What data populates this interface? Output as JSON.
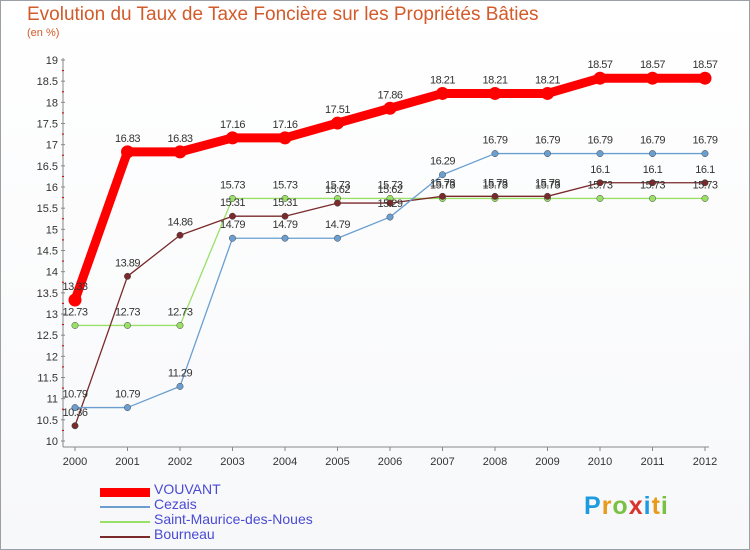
{
  "chart_data": {
    "type": "line",
    "title": "Evolution du Taux de Taxe Foncière sur les Propriétés Bâties",
    "subtitle": "(en %)",
    "x": [
      "2000",
      "2001",
      "2002",
      "2003",
      "2004",
      "2005",
      "2006",
      "2007",
      "2008",
      "2009",
      "2010",
      "2011",
      "2012"
    ],
    "ylim": [
      10,
      19
    ],
    "yticks": [
      "10",
      "10.5",
      "11",
      "11.5",
      "12",
      "12.5",
      "13",
      "13.5",
      "14",
      "14.5",
      "15",
      "15.5",
      "16",
      "16.5",
      "17",
      "17.5",
      "18",
      "18.5",
      "19"
    ],
    "grid": false,
    "series": [
      {
        "name": "VOUVANT",
        "color": "#ff0000",
        "emphasis": true,
        "values": [
          13.33,
          16.83,
          16.83,
          17.16,
          17.16,
          17.51,
          17.86,
          18.21,
          18.21,
          18.21,
          18.57,
          18.57,
          18.57
        ],
        "labels": [
          "13.33",
          "16.83",
          "16.83",
          "17.16",
          "17.16",
          "17.51",
          "17.86",
          "18.21",
          "18.21",
          "18.21",
          "18.57",
          "18.57",
          "18.57"
        ]
      },
      {
        "name": "Cezais",
        "color": "#6a9fd0",
        "values": [
          10.79,
          10.79,
          11.29,
          14.79,
          14.79,
          14.79,
          15.29,
          16.29,
          16.79,
          16.79,
          16.79,
          16.79,
          16.79
        ],
        "labels": [
          "10.79",
          "10.79",
          "11.29",
          "14.79",
          "14.79",
          "14.79",
          "15.29",
          "16.29",
          "16.79",
          "16.79",
          "16.79",
          "16.79",
          "16.79"
        ]
      },
      {
        "name": "Saint-Maurice-des-Noues",
        "color": "#99e066",
        "values": [
          12.73,
          12.73,
          12.73,
          15.73,
          15.73,
          15.73,
          15.73,
          15.73,
          15.73,
          15.73,
          15.73,
          15.73,
          15.73
        ],
        "labels": [
          "12.73",
          "12.73",
          "12.73",
          "15.73",
          "15.73",
          "15.73",
          "15.73",
          "15.73",
          "15.73",
          "15.73",
          "15.73",
          "15.73",
          "15.73"
        ]
      },
      {
        "name": "Bourneau",
        "color": "#7a2a2a",
        "values": [
          10.36,
          13.89,
          14.86,
          15.31,
          15.31,
          15.62,
          15.62,
          15.78,
          15.78,
          15.78,
          16.1,
          16.1,
          16.1
        ],
        "labels": [
          "10.36",
          "13.89",
          "14.86",
          "15.31",
          "15.31",
          "15.62",
          "15.62",
          "15.78",
          "15.78",
          "15.78",
          "16.1",
          "16.1",
          "16.1"
        ]
      }
    ]
  },
  "branding": {
    "letters": [
      "P",
      "r",
      "o",
      "x",
      "i",
      "t",
      "i"
    ],
    "colors": [
      "#1e9be0",
      "#e89a1c",
      "#7ac143",
      "#d9332b",
      "#1e9be0",
      "#e89a1c",
      "#7ac143"
    ]
  }
}
